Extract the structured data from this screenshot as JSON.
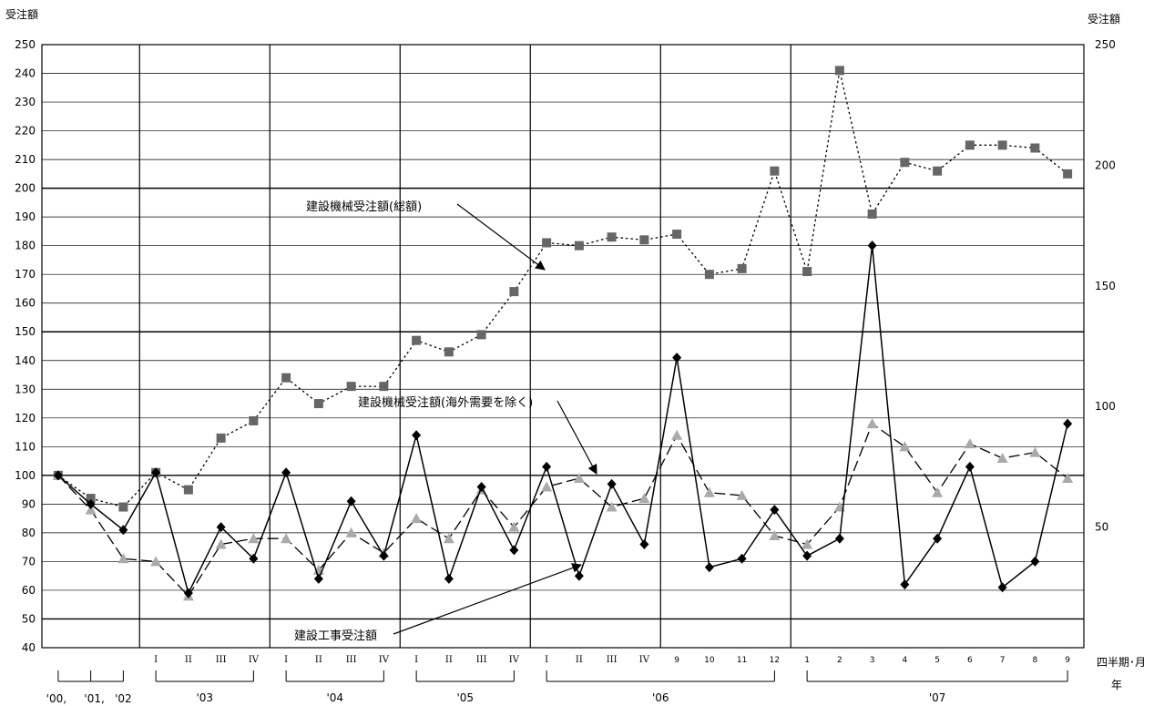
{
  "chart_data": {
    "type": "line",
    "left_axis_title": "受注額",
    "right_axis_title": "受注額",
    "x_axis_title": "四半期･月",
    "year_axis_title": "年",
    "left_ylim": [
      40,
      250
    ],
    "left_ticks": [
      40,
      50,
      60,
      70,
      80,
      90,
      100,
      110,
      120,
      130,
      140,
      150,
      160,
      170,
      180,
      190,
      200,
      210,
      220,
      230,
      240,
      250
    ],
    "right_ylim": [
      0,
      250
    ],
    "right_ticks": [
      50,
      100,
      150,
      200,
      250
    ],
    "grid": true,
    "x_labels": [
      "",
      "",
      "",
      "I",
      "II",
      "III",
      "IV",
      "I",
      "II",
      "III",
      "IV",
      "I",
      "II",
      "III",
      "IV",
      "I",
      "II",
      "III",
      "IV",
      "9",
      "10",
      "11",
      "12",
      "1",
      "2",
      "3",
      "4",
      "5",
      "6",
      "7",
      "8",
      "9"
    ],
    "year_labels": [
      "'00,",
      "'01,",
      "'02",
      "'03",
      "'04",
      "'05",
      "'06",
      "'07"
    ],
    "series": [
      {
        "name": "建設機械受注額(総額)",
        "axis": "left",
        "style": "dotted",
        "marker": "square",
        "color": "#666666",
        "values": [
          100,
          92,
          89,
          101,
          95,
          113,
          119,
          134,
          125,
          131,
          131,
          147,
          143,
          149,
          164,
          181,
          180,
          183,
          182,
          184,
          170,
          172,
          206,
          171,
          241,
          191,
          209,
          206,
          215,
          215,
          214,
          205
        ]
      },
      {
        "name": "建設機械受注額(海外需要を除く)",
        "axis": "left",
        "style": "dashed",
        "marker": "triangle",
        "color": "#aaaaaa",
        "values": [
          100,
          88,
          71,
          70,
          58,
          76,
          78,
          78,
          67,
          80,
          73,
          85,
          78,
          95,
          82,
          96,
          99,
          89,
          92,
          114,
          94,
          93,
          79,
          76,
          89,
          118,
          110,
          94,
          111,
          106,
          108,
          99
        ]
      },
      {
        "name": "建設工事受注額",
        "axis": "left",
        "style": "solid",
        "marker": "diamond",
        "color": "#000000",
        "values": [
          100,
          90,
          81,
          101,
          59,
          82,
          71,
          101,
          64,
          91,
          72,
          114,
          64,
          96,
          74,
          103,
          65,
          97,
          76,
          141,
          68,
          71,
          88,
          72,
          78,
          180,
          62,
          78,
          103,
          61,
          70,
          118
        ]
      }
    ],
    "annotations": [
      {
        "text": "建設機械受注額(総額)"
      },
      {
        "text": "建設機械受注額(海外需要を除く)"
      },
      {
        "text": "建設工事受注額"
      }
    ]
  }
}
